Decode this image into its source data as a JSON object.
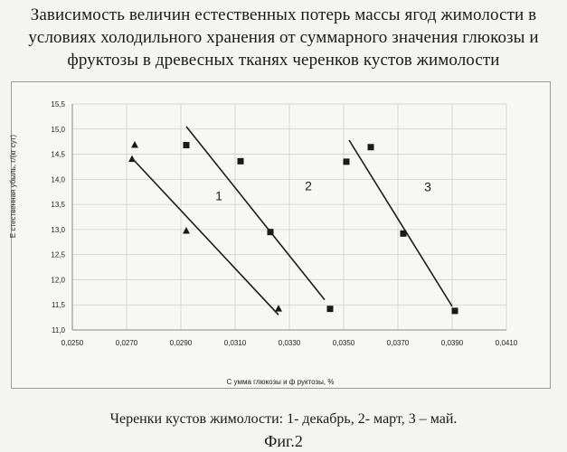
{
  "title_lines": [
    "Зависимость величин естественных потерь массы ягод жимолости  в",
    "условиях холодильного хранения от суммарного значения глюкозы и",
    "фруктозы в древесных тканях черенков кустов  жимолости"
  ],
  "caption": "Черенки кустов жимолости: 1- декабрь, 2- март, 3 – май.",
  "figure_label": "Фиг.2",
  "chart_data": {
    "type": "scatter",
    "title": "Зависимость величин естественных потерь массы ягод жимолости в условиях холодильного хранения от суммарного значения глюкозы и фруктозы в древесных тканях черенков кустов жимолости",
    "xlabel": "С умма глюкозы и ф руктозы, %",
    "ylabel": "Е стественная убыль, г/(кг сут)",
    "xlim": [
      0.025,
      0.041
    ],
    "ylim": [
      11.0,
      15.5
    ],
    "x_ticks": [
      "0,0250",
      "0,0270",
      "0,0290",
      "0,0310",
      "0,0330",
      "0,0350",
      "0,0370",
      "0,0390",
      "0,0410"
    ],
    "y_ticks": [
      "11,0",
      "11,5",
      "12,0",
      "12,5",
      "13,0",
      "13,5",
      "14,0",
      "14,5",
      "15,0",
      "15,5"
    ],
    "grid": true,
    "series": [
      {
        "name": "1",
        "marker": "triangle",
        "points": [
          [
            0.0273,
            14.68
          ],
          [
            0.0272,
            14.4
          ],
          [
            0.0292,
            12.97
          ],
          [
            0.0326,
            11.42
          ]
        ],
        "trend": [
          [
            0.0272,
            14.42
          ],
          [
            0.0326,
            11.3
          ]
        ]
      },
      {
        "name": "2",
        "marker": "square",
        "points": [
          [
            0.0292,
            14.68
          ],
          [
            0.0312,
            14.36
          ],
          [
            0.0323,
            12.95
          ],
          [
            0.0345,
            11.42
          ]
        ],
        "trend": [
          [
            0.0292,
            15.05
          ],
          [
            0.0343,
            11.6
          ]
        ]
      },
      {
        "name": "3",
        "marker": "square",
        "points": [
          [
            0.0351,
            14.35
          ],
          [
            0.036,
            14.64
          ],
          [
            0.0372,
            12.92
          ],
          [
            0.0391,
            11.38
          ]
        ],
        "trend": [
          [
            0.0352,
            14.78
          ],
          [
            0.039,
            11.47
          ]
        ]
      }
    ]
  }
}
